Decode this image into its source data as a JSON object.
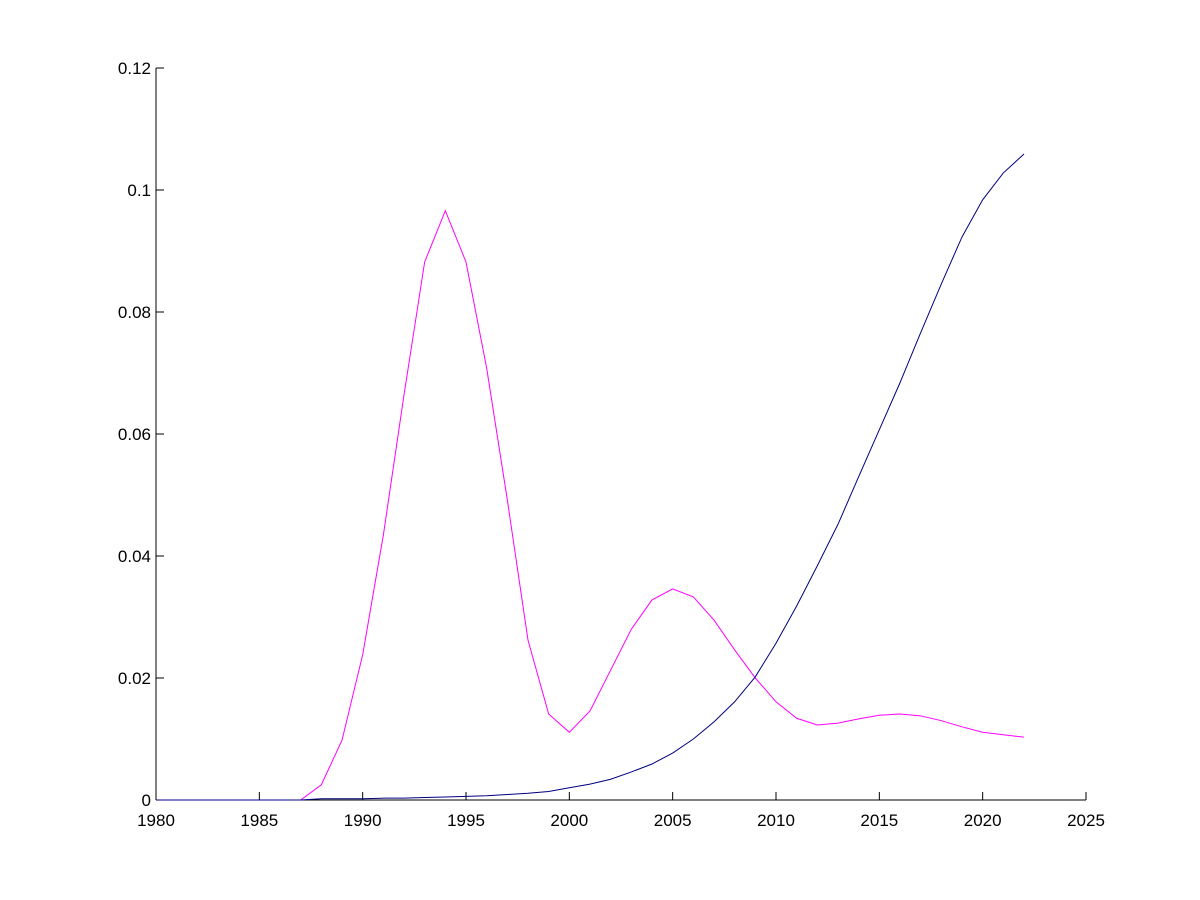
{
  "chart_data": {
    "type": "line",
    "x": [
      1980,
      1981,
      1982,
      1983,
      1984,
      1985,
      1986,
      1987,
      1988,
      1989,
      1990,
      1991,
      1992,
      1993,
      1994,
      1995,
      1996,
      1997,
      1998,
      1999,
      2000,
      2001,
      2002,
      2003,
      2004,
      2005,
      2006,
      2007,
      2008,
      2009,
      2010,
      2011,
      2012,
      2013,
      2014,
      2015,
      2016,
      2017,
      2018,
      2019,
      2020,
      2021,
      2022
    ],
    "series": [
      {
        "color": "#ff00ff",
        "values": [
          0,
          0,
          0,
          0,
          0,
          0,
          0,
          0,
          0.0025,
          0.0098,
          0.0238,
          0.0434,
          0.0664,
          0.0882,
          0.0966,
          0.0882,
          0.0708,
          0.0492,
          0.0262,
          0.0141,
          0.0111,
          0.0146,
          0.0213,
          0.028,
          0.0328,
          0.0346,
          0.0333,
          0.0295,
          0.0246,
          0.02,
          0.0161,
          0.0134,
          0.0123,
          0.0126,
          0.0133,
          0.0139,
          0.0141,
          0.0138,
          0.013,
          0.012,
          0.0111,
          0.0107,
          0.0103
        ]
      },
      {
        "color": "#000080",
        "values": [
          0,
          0,
          0,
          0,
          0,
          0,
          0,
          0,
          0.0002,
          0.0002,
          0.0002,
          0.0003,
          0.0003,
          0.0004,
          0.0005,
          0.0006,
          0.0007,
          0.0009,
          0.0011,
          0.0014,
          0.002,
          0.0026,
          0.0034,
          0.0046,
          0.0059,
          0.0077,
          0.01,
          0.0128,
          0.0161,
          0.0202,
          0.0257,
          0.0318,
          0.0384,
          0.0452,
          0.053,
          0.0607,
          0.0684,
          0.0766,
          0.0846,
          0.0923,
          0.0984,
          0.1028,
          0.1059
        ]
      }
    ],
    "xlim": [
      1980,
      2025
    ],
    "xticks": [
      1980,
      1985,
      1990,
      1995,
      2000,
      2005,
      2010,
      2015,
      2020,
      2025
    ],
    "ylim": [
      0,
      0.12
    ],
    "yticks": [
      0,
      0.02,
      0.04,
      0.06,
      0.08,
      0.1,
      0.12
    ]
  }
}
